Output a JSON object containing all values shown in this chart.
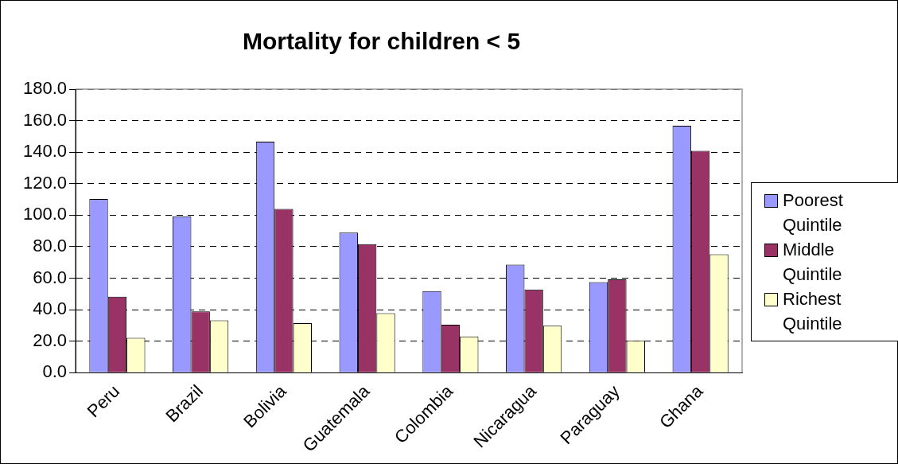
{
  "chart_data": {
    "type": "bar",
    "title": "Mortality for children < 5",
    "categories": [
      "Peru",
      "Brazil",
      "Bolivia",
      "Guatemala",
      "Colombia",
      "Nicaragua",
      "Paraguay",
      "Ghana"
    ],
    "series": [
      {
        "name": "Poorest Quintile",
        "color": "#9999ff",
        "values": [
          110.3,
          99.3,
          146.6,
          88.9,
          51.8,
          68.6,
          57.5,
          156.8
        ]
      },
      {
        "name": "Middle Quintile",
        "color": "#993366",
        "values": [
          48.2,
          38.9,
          103.9,
          81.6,
          30.5,
          52.8,
          59.3,
          140.9
        ]
      },
      {
        "name": "Richest Quintile",
        "color": "#ffffcc",
        "values": [
          22.1,
          33.2,
          31.4,
          37.8,
          23.0,
          29.8,
          20.4,
          75.2
        ]
      }
    ],
    "ylim": [
      0,
      180
    ],
    "yticks": [
      {
        "value": 0,
        "label": "0.0"
      },
      {
        "value": 20,
        "label": "20.0"
      },
      {
        "value": 40,
        "label": "40.0"
      },
      {
        "value": 60,
        "label": "60.0"
      },
      {
        "value": 80,
        "label": "80.0"
      },
      {
        "value": 100,
        "label": "100.0"
      },
      {
        "value": 120,
        "label": "120.0"
      },
      {
        "value": 140,
        "label": "140.0"
      },
      {
        "value": 160,
        "label": "160.0"
      },
      {
        "value": 180,
        "label": "180.0"
      }
    ],
    "grid": "y",
    "legend": "right"
  }
}
